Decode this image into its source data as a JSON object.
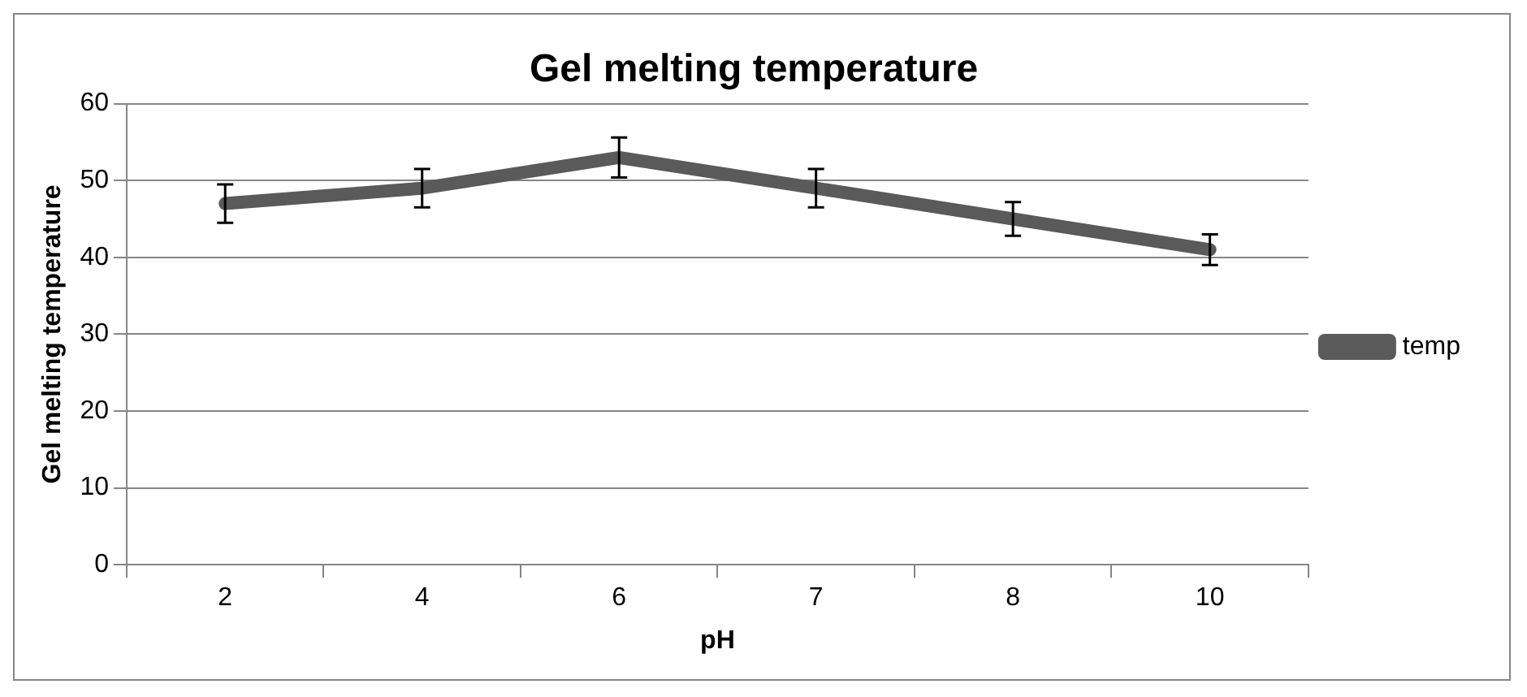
{
  "chart_data": {
    "type": "line",
    "title": "Gel melting temperature",
    "xlabel": "pH",
    "ylabel": "Gel melting temperature",
    "categories": [
      "2",
      "4",
      "6",
      "7",
      "8",
      "10"
    ],
    "series": [
      {
        "name": "temp",
        "color": "#5a5a5a",
        "values": [
          47,
          49,
          53,
          49,
          45,
          41
        ],
        "errors": [
          2.5,
          2.5,
          2.6,
          2.5,
          2.2,
          2
        ]
      }
    ],
    "ylim": [
      0,
      60
    ],
    "yticks": [
      0,
      10,
      20,
      30,
      40,
      50,
      60
    ],
    "grid": "y",
    "legend": "right",
    "marker": "none",
    "line_style": "solid"
  }
}
